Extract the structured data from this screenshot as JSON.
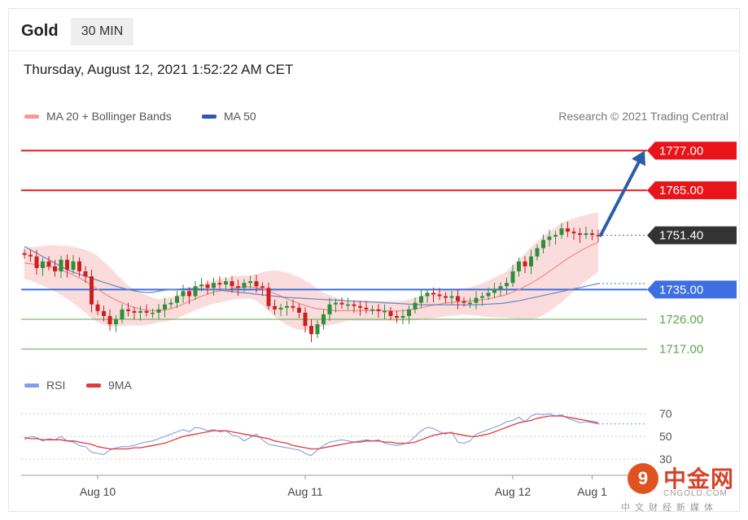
{
  "header": {
    "title": "Gold",
    "timeframe": "30 MIN",
    "datetime": "Thursday, August 12, 2021 1:52:22 AM CET"
  },
  "legend": {
    "ma20_label": "MA 20 + Bollinger Bands",
    "ma50_label": "MA 50",
    "credit": "Research © 2021 Trading Central"
  },
  "rsi_legend": {
    "rsi_label": "RSI",
    "ma_label": "9MA"
  },
  "watermark": {
    "logo_text": "9",
    "name": "中金网",
    "url": "CNGOLD.COM",
    "sub": "中文财经新媒体"
  },
  "colors": {
    "resistance": "#e8141a",
    "support_pivot": "#3d6fe0",
    "support": "#5aa84a",
    "last_price": "#333333",
    "bull": "#2d8f3a",
    "bear": "#cc1f1f",
    "ma20": "#f08a8a",
    "ma50": "#6a85c4",
    "band_fill": "#fbdcdc",
    "arrow": "#2b5ea8",
    "rsi": "#7f9fe8",
    "rsi_ma": "#e23a3a"
  },
  "chart_data": [
    {
      "type": "candlestick",
      "name": "Gold 30 MIN price",
      "y_range": [
        1712,
        1782
      ],
      "x_labels": [
        {
          "label": "Aug 10",
          "index": 12
        },
        {
          "label": "Aug 11",
          "index": 46
        },
        {
          "label": "Aug 12",
          "index": 80
        },
        {
          "label": "Aug 1",
          "index": 93
        }
      ],
      "levels": [
        {
          "value": 1777.0,
          "label": "1777.00",
          "kind": "resistance"
        },
        {
          "value": 1765.0,
          "label": "1765.00",
          "kind": "resistance"
        },
        {
          "value": 1751.4,
          "label": "1751.40",
          "kind": "last"
        },
        {
          "value": 1735.0,
          "label": "1735.00",
          "kind": "pivot"
        },
        {
          "value": 1726.0,
          "label": "1726.00",
          "kind": "support"
        },
        {
          "value": 1717.0,
          "label": "1717.00",
          "kind": "support"
        }
      ],
      "forecast_arrow": {
        "from": 1751.4,
        "to": 1777.0
      },
      "closes": [
        1745.5,
        1745.0,
        1741.5,
        1743.5,
        1742.0,
        1740.5,
        1744.0,
        1741.0,
        1743.5,
        1740.5,
        1739.0,
        1730.5,
        1728.5,
        1727.0,
        1724.5,
        1726.0,
        1729.0,
        1728.5,
        1728.0,
        1728.5,
        1728.0,
        1728.0,
        1729.0,
        1730.5,
        1731.0,
        1733.0,
        1734.5,
        1733.0,
        1736.0,
        1736.5,
        1735.5,
        1737.0,
        1736.5,
        1737.5,
        1736.0,
        1735.5,
        1737.0,
        1737.5,
        1736.0,
        1735.5,
        1730.0,
        1729.0,
        1729.5,
        1730.0,
        1729.5,
        1728.0,
        1724.0,
        1721.5,
        1724.5,
        1727.5,
        1730.5,
        1731.0,
        1730.5,
        1730.5,
        1730.0,
        1729.5,
        1729.0,
        1729.0,
        1728.5,
        1728.5,
        1727.0,
        1726.5,
        1727.0,
        1729.0,
        1731.0,
        1733.0,
        1734.0,
        1733.5,
        1733.0,
        1732.5,
        1733.0,
        1731.5,
        1731.0,
        1731.0,
        1732.5,
        1733.0,
        1734.0,
        1735.0,
        1736.0,
        1737.0,
        1740.5,
        1743.5,
        1742.0,
        1745.0,
        1747.5,
        1750.0,
        1751.0,
        1751.5,
        1753.5,
        1752.5,
        1752.0,
        1751.5,
        1752.0,
        1751.5,
        1751.4
      ],
      "ma20": [
        1743.0,
        1742.8,
        1742.4,
        1742.2,
        1741.9,
        1741.4,
        1740.8,
        1740.2,
        1739.4,
        1738.5,
        1737.5,
        1736.3,
        1735.1,
        1733.9,
        1732.8,
        1731.8,
        1731.0,
        1730.2,
        1729.6,
        1729.1,
        1728.8,
        1728.6,
        1728.6,
        1728.8,
        1729.2,
        1729.8,
        1730.6,
        1731.4,
        1732.2,
        1733.0,
        1733.6,
        1734.2,
        1734.6,
        1735.0,
        1735.4,
        1735.6,
        1735.8,
        1735.8,
        1735.6,
        1735.2,
        1734.6,
        1733.8,
        1733.0,
        1732.2,
        1731.4,
        1730.8,
        1730.2,
        1729.6,
        1729.2,
        1729.0,
        1728.8,
        1728.6,
        1728.6,
        1728.6,
        1728.6,
        1728.6,
        1728.6,
        1728.6,
        1728.6,
        1728.6,
        1728.5,
        1728.5,
        1728.6,
        1728.8,
        1729.1,
        1729.5,
        1729.9,
        1730.3,
        1730.6,
        1730.9,
        1731.1,
        1731.3,
        1731.4,
        1731.5,
        1731.7,
        1731.9,
        1732.2,
        1732.6,
        1733.0,
        1733.5,
        1734.2,
        1735.0,
        1735.9,
        1736.9,
        1738.0,
        1739.2,
        1740.5,
        1741.8,
        1743.1,
        1744.4,
        1745.5,
        1746.6,
        1747.6,
        1748.5,
        1749.3
      ],
      "ma50": [
        1748.0,
        1747.0,
        1746.0,
        1745.0,
        1744.0,
        1743.0,
        1742.0,
        1741.0,
        1740.3,
        1739.6,
        1739.0,
        1738.4,
        1737.8,
        1737.2,
        1736.6,
        1736.0,
        1735.5,
        1735.0,
        1734.6,
        1734.3,
        1734.1,
        1734.2,
        1734.5,
        1734.8,
        1735.0,
        1735.1,
        1735.2,
        1735.3,
        1735.3,
        1735.2,
        1735.1,
        1735.0,
        1734.8,
        1734.6,
        1734.4,
        1734.2,
        1734.0,
        1733.8,
        1733.6,
        1733.4,
        1733.2,
        1733.0,
        1732.8,
        1732.6,
        1732.5,
        1732.4,
        1732.3,
        1732.2,
        1732.1,
        1732.0,
        1731.9,
        1731.8,
        1731.7,
        1731.6,
        1731.5,
        1731.4,
        1731.3,
        1731.2,
        1731.1,
        1731.0,
        1730.9,
        1730.8,
        1730.7,
        1730.6,
        1730.5,
        1730.4,
        1730.4,
        1730.4,
        1730.4,
        1730.4,
        1730.4,
        1730.4,
        1730.4,
        1730.4,
        1730.4,
        1730.5,
        1730.6,
        1730.7,
        1730.8,
        1731.0,
        1731.3,
        1731.6,
        1732.0,
        1732.4,
        1732.8,
        1733.2,
        1733.6,
        1734.0,
        1734.4,
        1734.8,
        1735.2,
        1735.6,
        1736.0,
        1736.4,
        1736.8
      ],
      "band_width": [
        5,
        5,
        5.5,
        6,
        6.5,
        7,
        7.5,
        8,
        8.5,
        9,
        9.5,
        10,
        10,
        9.5,
        9,
        8,
        7,
        6,
        5.5,
        5,
        4.5,
        4,
        3.5,
        3.5,
        3.5,
        3.5,
        3.5,
        3.5,
        3.5,
        3.5,
        3.5,
        3.5,
        3.5,
        3.5,
        3.5,
        3.5,
        3.5,
        3.5,
        4,
        5,
        6,
        7,
        7.5,
        8,
        8,
        8,
        7.5,
        7,
        6,
        5,
        4.5,
        4,
        3.5,
        3,
        3,
        3,
        3,
        3,
        3,
        3,
        3,
        3,
        3,
        3.2,
        3.4,
        3.6,
        3.8,
        4,
        4,
        4,
        4,
        4,
        4,
        4.2,
        4.5,
        5,
        5.5,
        6,
        6.5,
        7,
        8,
        9,
        10,
        11,
        11.5,
        12,
        12,
        12,
        12,
        11.5,
        11,
        10.5,
        10,
        9.5,
        9
      ]
    },
    {
      "type": "line",
      "name": "RSI",
      "y_ticks": [
        30,
        50,
        70
      ],
      "y_range": [
        25,
        78
      ],
      "series": [
        {
          "name": "RSI",
          "values": [
            47,
            50,
            49,
            46,
            48,
            47,
            50,
            46,
            45,
            42,
            41,
            36,
            35,
            34,
            38,
            40,
            41,
            41,
            42,
            44,
            45,
            46,
            48,
            50,
            52,
            54,
            56,
            54,
            58,
            57,
            55,
            56,
            54,
            55,
            51,
            50,
            46,
            49,
            52,
            47,
            43,
            42,
            41,
            40,
            39,
            38,
            35,
            33,
            38,
            42,
            45,
            46,
            47,
            46,
            45,
            46,
            47,
            46,
            47,
            44,
            43,
            42,
            43,
            45,
            50,
            55,
            58,
            57,
            54,
            52,
            54,
            45,
            44,
            46,
            52,
            54,
            56,
            58,
            60,
            63,
            64,
            67,
            63,
            68,
            70,
            69,
            70,
            68,
            69,
            66,
            64,
            62,
            63,
            62,
            61
          ]
        },
        {
          "name": "9MA",
          "values": [
            49,
            48,
            48,
            47,
            47,
            47,
            47,
            46,
            46,
            45,
            44,
            43,
            41,
            40,
            39,
            39,
            39,
            39,
            40,
            40,
            41,
            42,
            43,
            44,
            46,
            48,
            50,
            51,
            52,
            53,
            54,
            55,
            55,
            55,
            54,
            53,
            52,
            51,
            50,
            49,
            48,
            46,
            45,
            44,
            42,
            41,
            40,
            39,
            39,
            40,
            41,
            42,
            43,
            44,
            45,
            45,
            46,
            46,
            46,
            45,
            45,
            44,
            44,
            44,
            45,
            47,
            49,
            51,
            52,
            53,
            53,
            52,
            51,
            50,
            50,
            51,
            52,
            54,
            56,
            58,
            60,
            62,
            63,
            64,
            66,
            67,
            68,
            68,
            68,
            67,
            66,
            65,
            64,
            63,
            62
          ]
        }
      ]
    }
  ]
}
